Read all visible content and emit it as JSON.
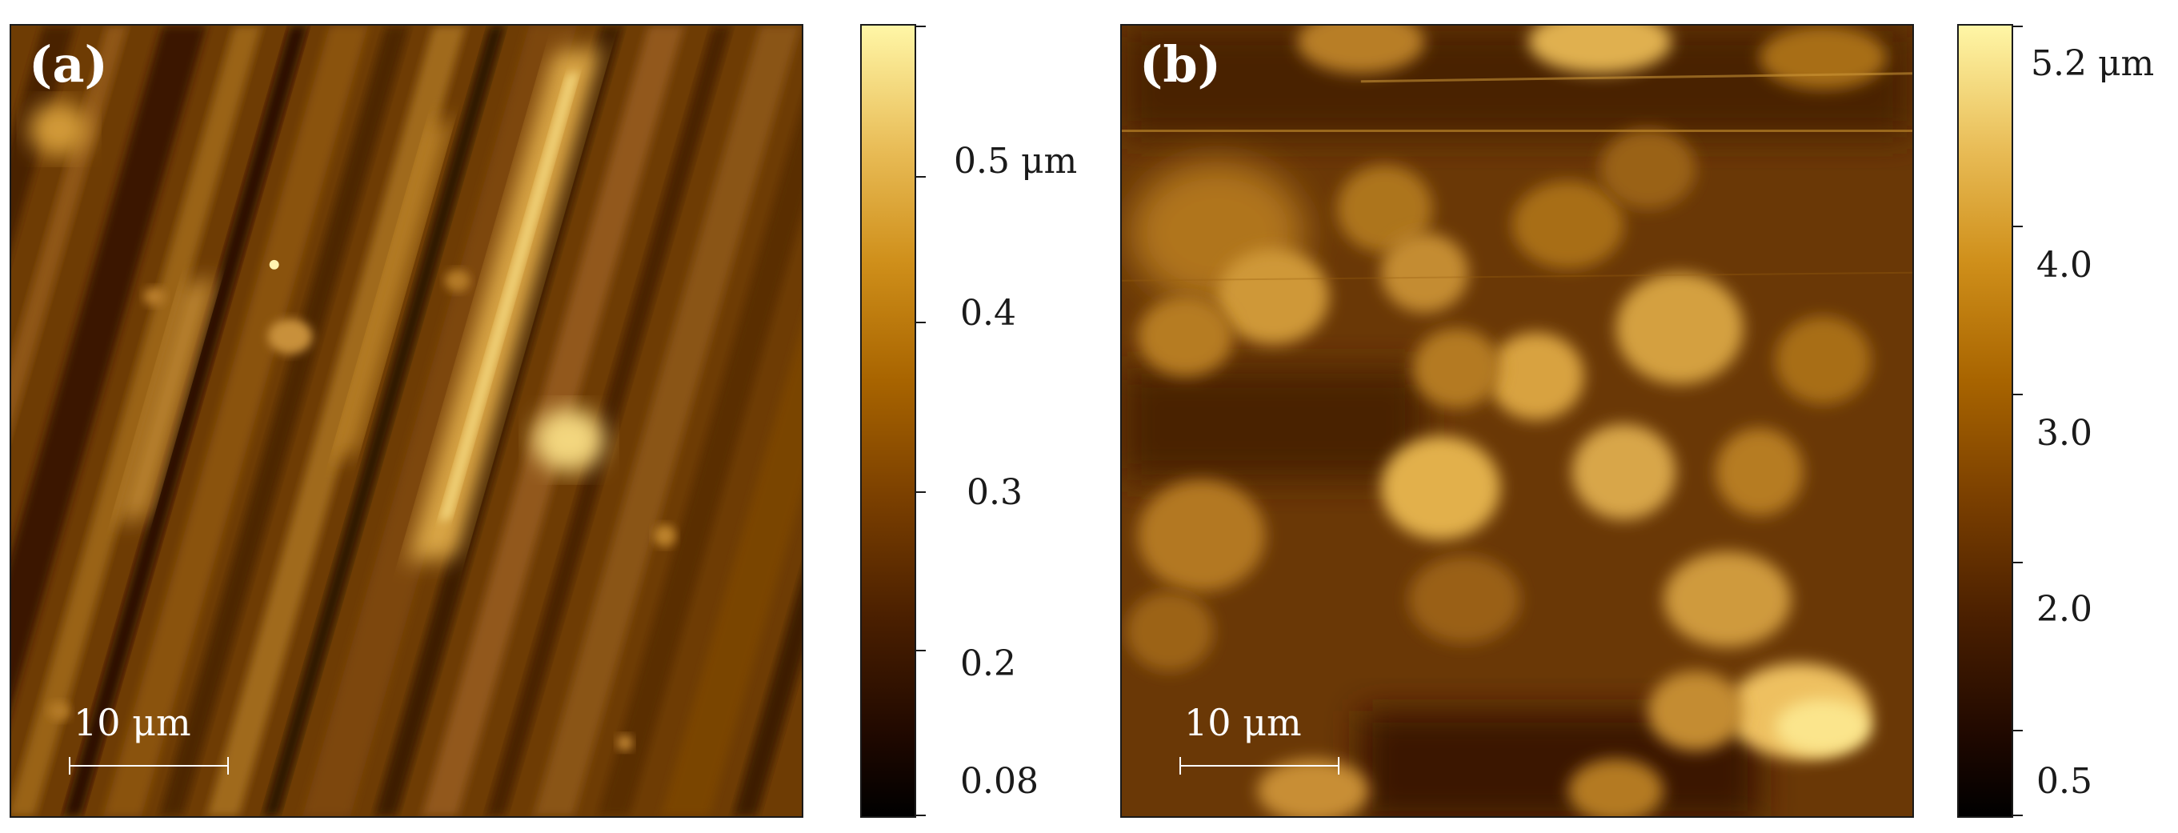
{
  "figure": {
    "panels": [
      {
        "id": "a",
        "label": "(a)",
        "scalebar_label": "10 μm",
        "colorbar": {
          "labels": [
            "0.5 μm",
            "0.4",
            "0.3",
            "0.2",
            "0.08"
          ]
        }
      },
      {
        "id": "b",
        "label": "(b)",
        "scalebar_label": "10 μm",
        "colorbar": {
          "labels": [
            "5.2 μm",
            "4.0",
            "3.0",
            "2.0",
            "0.5"
          ]
        }
      }
    ],
    "colors": {
      "colormap_low": "#000000",
      "colormap_mid": "#a86400",
      "colormap_high": "#fff6a6"
    }
  }
}
